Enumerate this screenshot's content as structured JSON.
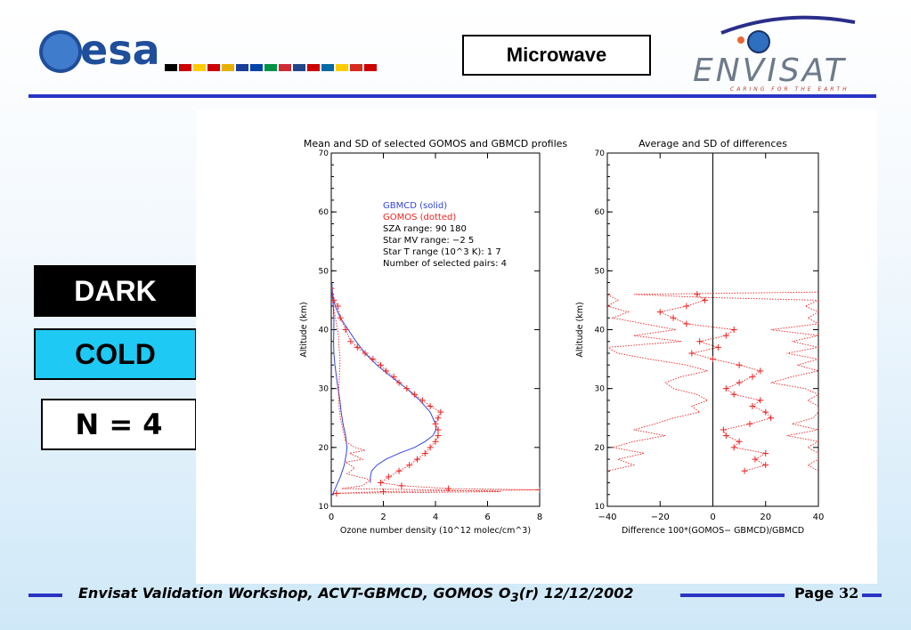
{
  "header": {
    "esa_wordmark": "esa",
    "section_label": "Microwave",
    "envisat_wordmark": "ENVISAT",
    "envisat_tagline": "CARING FOR THE EARTH",
    "colors": {
      "rule": "#2a33c4",
      "esa_blue": "#1f4e9b",
      "envisat_gray": "#6d7a8a"
    }
  },
  "tags": {
    "dark": "DARK",
    "cold": "COLD",
    "count": "N = 4",
    "colors": {
      "cold_bg": "#1ec9f4"
    }
  },
  "footer": {
    "text_main": "Envisat Validation Workshop, ACVT-GBMCD,  GOMOS O",
    "text_sub": "3",
    "text_tail": "(r) 12/12/2002",
    "page_label": "Page ",
    "page_number": "32"
  },
  "chart_data": [
    {
      "type": "line",
      "title": "Mean and SD of selected GOMOS and GBMCD profiles",
      "xlabel": "Ozone number density (10^12 molec/cm^3)",
      "ylabel": "Altitude (km)",
      "xlim": [
        0,
        8
      ],
      "ylim": [
        10,
        70
      ],
      "xticks": [
        0,
        2,
        4,
        6,
        8
      ],
      "yticks": [
        10,
        20,
        30,
        40,
        50,
        60,
        70
      ],
      "legend": {
        "position": "top-right",
        "entries": [
          {
            "label": "GBMCD   (solid)",
            "color": "#3344dd"
          },
          {
            "label": "GOMOS   (dotted)",
            "color": "#ee2222"
          }
        ],
        "info": [
          "SZA range:       90   180",
          "Star MV range:    −2    5",
          "Star T range (10^3 K):   1    7",
          "Number of selected pairs:    4"
        ]
      },
      "series": [
        {
          "name": "GBMCD mean",
          "color": "#3344dd",
          "style": "solid",
          "points": [
            [
              0.02,
              48
            ],
            [
              0.05,
              46
            ],
            [
              0.15,
              44
            ],
            [
              0.35,
              42
            ],
            [
              0.65,
              40
            ],
            [
              0.95,
              38
            ],
            [
              1.3,
              36
            ],
            [
              1.75,
              34
            ],
            [
              2.3,
              32
            ],
            [
              2.9,
              30
            ],
            [
              3.4,
              28
            ],
            [
              3.8,
              26
            ],
            [
              4.0,
              24
            ],
            [
              4.02,
              23
            ],
            [
              3.9,
              22
            ],
            [
              3.6,
              21
            ],
            [
              3.2,
              20
            ],
            [
              2.6,
              19
            ],
            [
              2.1,
              18
            ],
            [
              1.75,
              17
            ],
            [
              1.55,
              16
            ],
            [
              1.5,
              15
            ],
            [
              1.5,
              14
            ]
          ]
        },
        {
          "name": "GBMCD SD",
          "color": "#3344dd",
          "style": "solid",
          "points": [
            [
              0.02,
              48
            ],
            [
              0.04,
              46
            ],
            [
              0.08,
              44
            ],
            [
              0.1,
              42
            ],
            [
              0.1,
              40
            ],
            [
              0.09,
              38
            ],
            [
              0.1,
              36
            ],
            [
              0.14,
              34
            ],
            [
              0.2,
              32
            ],
            [
              0.26,
              30
            ],
            [
              0.33,
              28
            ],
            [
              0.38,
              26
            ],
            [
              0.45,
              24
            ],
            [
              0.55,
              22
            ],
            [
              0.6,
              20
            ],
            [
              0.58,
              19
            ],
            [
              0.5,
              17
            ],
            [
              0.35,
              15
            ],
            [
              0.15,
              13
            ],
            [
              0.05,
              12
            ]
          ]
        },
        {
          "name": "GOMOS mean",
          "color": "#ee2222",
          "style": "dotted",
          "points": [
            [
              0.0,
              47
            ],
            [
              0.1,
              45
            ],
            [
              0.25,
              44
            ],
            [
              0.35,
              42
            ],
            [
              0.55,
              40
            ],
            [
              0.75,
              38
            ],
            [
              1.0,
              37
            ],
            [
              1.3,
              36
            ],
            [
              1.6,
              35
            ],
            [
              1.9,
              34
            ],
            [
              2.1,
              33
            ],
            [
              2.4,
              32
            ],
            [
              2.6,
              31
            ],
            [
              2.9,
              30
            ],
            [
              3.2,
              29
            ],
            [
              3.5,
              28
            ],
            [
              3.8,
              27
            ],
            [
              4.2,
              26
            ],
            [
              4.1,
              25
            ],
            [
              4.0,
              24
            ],
            [
              4.1,
              23
            ],
            [
              4.1,
              22
            ],
            [
              4.0,
              21
            ],
            [
              3.8,
              20
            ],
            [
              3.6,
              19
            ],
            [
              3.3,
              18
            ],
            [
              3.0,
              17
            ],
            [
              2.6,
              16
            ],
            [
              2.2,
              15
            ],
            [
              1.9,
              14
            ],
            [
              2.7,
              13.5
            ],
            [
              4.5,
              13
            ],
            [
              8.0,
              12.8
            ],
            [
              2.0,
              12.5
            ],
            [
              0.2,
              12.2
            ]
          ]
        },
        {
          "name": "GOMOS SD",
          "color": "#ee2222",
          "style": "dotted",
          "points": [
            [
              0.0,
              47
            ],
            [
              0.05,
              45
            ],
            [
              0.12,
              43
            ],
            [
              0.2,
              41
            ],
            [
              0.28,
              39
            ],
            [
              0.3,
              37
            ],
            [
              0.34,
              35
            ],
            [
              0.32,
              33
            ],
            [
              0.3,
              31
            ],
            [
              0.28,
              29
            ],
            [
              0.3,
              27
            ],
            [
              0.35,
              25
            ],
            [
              0.45,
              23
            ],
            [
              0.55,
              21
            ],
            [
              0.9,
              20
            ],
            [
              1.3,
              19.5
            ],
            [
              0.7,
              19
            ],
            [
              1.2,
              18
            ],
            [
              0.55,
              17.5
            ],
            [
              0.9,
              16.5
            ],
            [
              0.6,
              15.5
            ],
            [
              1.5,
              14.5
            ],
            [
              1.2,
              13.5
            ],
            [
              0.4,
              13
            ],
            [
              4.0,
              12.8
            ],
            [
              6.5,
              12.5
            ],
            [
              0.1,
              12.2
            ]
          ]
        }
      ]
    },
    {
      "type": "line",
      "title": "Average and SD of differences",
      "xlabel": "Difference 100*(GOMOS− GBMCD)/GBMCD",
      "ylabel": "Altitude (km)",
      "xlim": [
        -40,
        40
      ],
      "ylim": [
        10,
        70
      ],
      "xticks": [
        -40,
        -20,
        0,
        20,
        40
      ],
      "yticks": [
        10,
        20,
        30,
        40,
        50,
        60,
        70
      ],
      "zero_line": 0,
      "series": [
        {
          "name": "Mean difference",
          "color": "#ee2222",
          "style": "dotted",
          "points": [
            [
              -6,
              46
            ],
            [
              -3,
              45
            ],
            [
              -10,
              44
            ],
            [
              -20,
              43
            ],
            [
              -15,
              42
            ],
            [
              -10,
              41
            ],
            [
              8,
              40
            ],
            [
              5,
              39
            ],
            [
              -5,
              38
            ],
            [
              2,
              37
            ],
            [
              -8,
              36
            ],
            [
              0,
              35
            ],
            [
              10,
              34
            ],
            [
              18,
              33
            ],
            [
              15,
              32
            ],
            [
              10,
              31
            ],
            [
              5,
              30
            ],
            [
              8,
              29
            ],
            [
              18,
              28
            ],
            [
              15,
              27
            ],
            [
              20,
              26
            ],
            [
              22,
              25
            ],
            [
              14,
              24
            ],
            [
              4,
              23
            ],
            [
              5,
              22
            ],
            [
              10,
              21
            ],
            [
              8,
              20
            ],
            [
              20,
              19
            ],
            [
              16,
              18
            ],
            [
              20,
              17
            ],
            [
              12,
              16
            ]
          ]
        },
        {
          "name": "SD upper",
          "color": "#ee2222",
          "style": "dotted",
          "points": [
            [
              40,
              46.4
            ],
            [
              -30,
              46
            ],
            [
              -5,
              45.5
            ],
            [
              40,
              45
            ],
            [
              35,
              44
            ],
            [
              40,
              43
            ],
            [
              36,
              42
            ],
            [
              40,
              41
            ],
            [
              22,
              40
            ],
            [
              40,
              39
            ],
            [
              30,
              38
            ],
            [
              40,
              37
            ],
            [
              28,
              36
            ],
            [
              40,
              35
            ],
            [
              32,
              34
            ],
            [
              40,
              33
            ],
            [
              30,
              32
            ],
            [
              22,
              31
            ],
            [
              35,
              30
            ],
            [
              40,
              29
            ],
            [
              36,
              28
            ],
            [
              40,
              27
            ],
            [
              40,
              26
            ],
            [
              38,
              25
            ],
            [
              30,
              24
            ],
            [
              40,
              23
            ],
            [
              28,
              22
            ],
            [
              40,
              21
            ],
            [
              36,
              20
            ],
            [
              40,
              19
            ],
            [
              40,
              18
            ],
            [
              36,
              17
            ],
            [
              40,
              16
            ]
          ]
        },
        {
          "name": "SD lower",
          "color": "#ee2222",
          "style": "dotted",
          "points": [
            [
              -40,
              46.4
            ],
            [
              -40,
              46
            ],
            [
              -36,
              45
            ],
            [
              -40,
              44
            ],
            [
              -32,
              43
            ],
            [
              -38,
              42
            ],
            [
              -26,
              41
            ],
            [
              -14,
              40
            ],
            [
              -30,
              39
            ],
            [
              -12,
              38
            ],
            [
              -40,
              37
            ],
            [
              -36,
              36
            ],
            [
              -24,
              35
            ],
            [
              -10,
              34
            ],
            [
              -2,
              33
            ],
            [
              -12,
              32
            ],
            [
              -18,
              31
            ],
            [
              -15,
              30
            ],
            [
              -6,
              29
            ],
            [
              -2,
              28
            ],
            [
              -8,
              27
            ],
            [
              -5,
              26
            ],
            [
              -15,
              25
            ],
            [
              -22,
              24
            ],
            [
              -30,
              23
            ],
            [
              -18,
              22
            ],
            [
              -30,
              21
            ],
            [
              -38,
              20
            ],
            [
              -26,
              19
            ],
            [
              -36,
              18
            ],
            [
              -30,
              17
            ],
            [
              -40,
              16
            ]
          ]
        }
      ]
    }
  ]
}
